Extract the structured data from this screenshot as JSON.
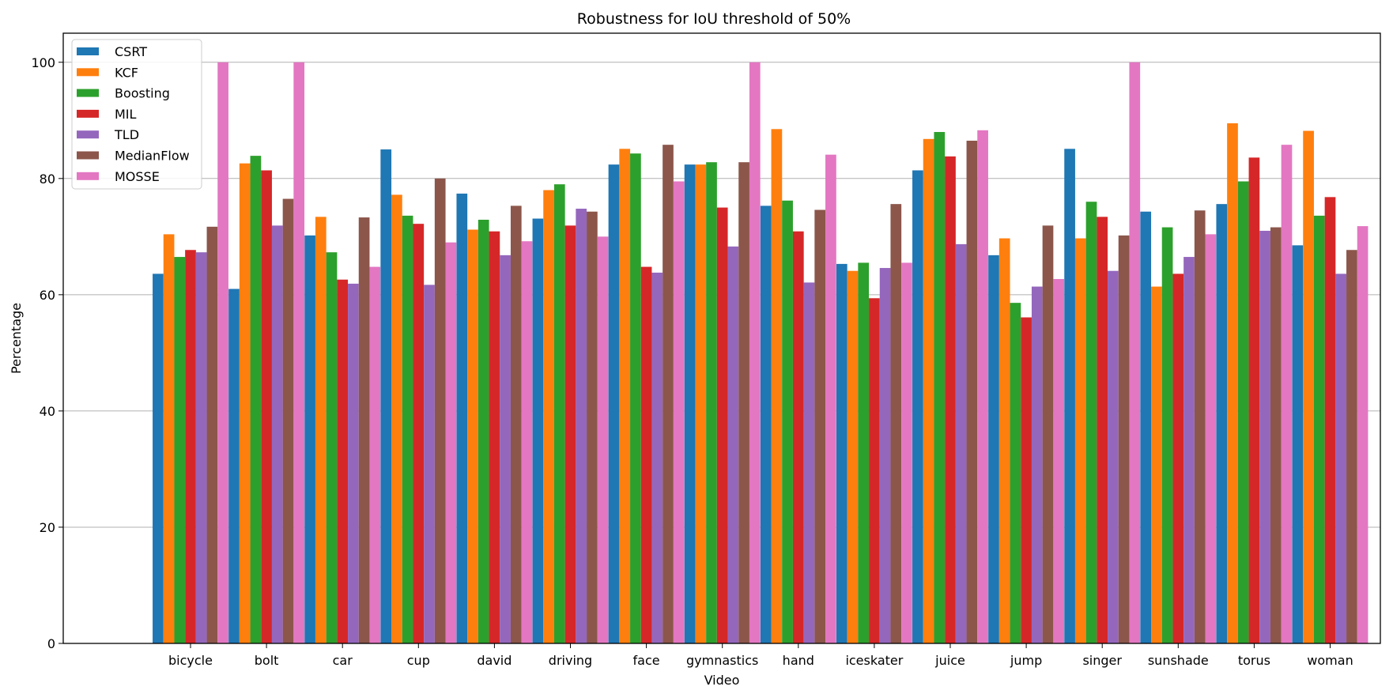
{
  "chart_data": {
    "type": "bar",
    "title": "Robustness for IoU threshold of 50%",
    "xlabel": "Video",
    "ylabel": "Percentage",
    "ylim": [
      0,
      105
    ],
    "yticks": [
      0,
      20,
      40,
      60,
      80,
      100
    ],
    "grid": "horizontal",
    "legend_position": "top-left",
    "categories": [
      "bicycle",
      "bolt",
      "car",
      "cup",
      "david",
      "driving",
      "face",
      "gymnastics",
      "hand",
      "iceskater",
      "juice",
      "jump",
      "singer",
      "sunshade",
      "torus",
      "woman"
    ],
    "series": [
      {
        "name": "CSRT",
        "color": "#1f77b4",
        "values": [
          63.6,
          61.0,
          70.2,
          85.0,
          77.4,
          73.1,
          82.4,
          82.4,
          75.3,
          65.3,
          81.4,
          66.8,
          85.1,
          74.3,
          75.6,
          68.5
        ]
      },
      {
        "name": "KCF",
        "color": "#ff7f0e",
        "values": [
          70.4,
          82.6,
          73.4,
          77.2,
          71.2,
          78.0,
          85.1,
          82.4,
          88.5,
          64.1,
          86.8,
          69.7,
          69.7,
          61.4,
          89.5,
          88.2
        ]
      },
      {
        "name": "Boosting",
        "color": "#2ca02c",
        "values": [
          66.5,
          83.9,
          67.3,
          73.6,
          72.9,
          79.0,
          84.3,
          82.8,
          76.2,
          65.5,
          88.0,
          58.6,
          76.0,
          71.6,
          79.5,
          73.6
        ]
      },
      {
        "name": "MIL",
        "color": "#d62728",
        "values": [
          67.7,
          81.4,
          62.6,
          72.2,
          70.9,
          71.9,
          64.8,
          75.0,
          70.9,
          59.4,
          83.8,
          56.1,
          73.4,
          63.6,
          83.6,
          76.8
        ]
      },
      {
        "name": "TLD",
        "color": "#9467bd",
        "values": [
          67.3,
          71.9,
          61.9,
          61.7,
          66.8,
          74.8,
          63.8,
          68.3,
          62.1,
          64.6,
          68.7,
          61.4,
          64.1,
          66.5,
          71.0,
          63.6
        ]
      },
      {
        "name": "MedianFlow",
        "color": "#8c564b",
        "values": [
          71.7,
          76.5,
          73.3,
          80.0,
          75.3,
          74.3,
          85.8,
          82.8,
          74.6,
          75.6,
          86.5,
          71.9,
          70.2,
          74.5,
          71.6,
          67.7
        ]
      },
      {
        "name": "MOSSE",
        "color": "#e377c2",
        "values": [
          100,
          100,
          64.8,
          69.0,
          69.2,
          70.0,
          79.5,
          100,
          84.1,
          65.5,
          88.3,
          62.7,
          100,
          70.4,
          85.8,
          71.8
        ]
      }
    ]
  }
}
